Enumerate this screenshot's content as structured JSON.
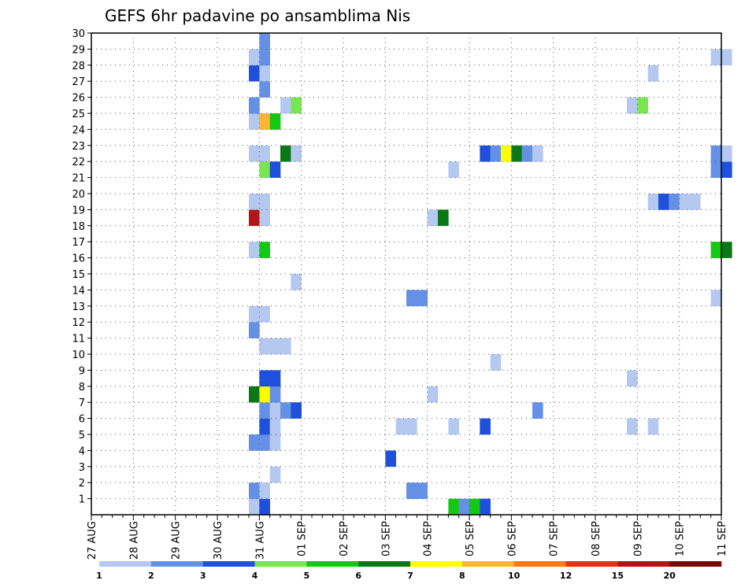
{
  "chart_data": {
    "type": "heatmap",
    "title": "GEFS 6hr padavine po ansamblima Nis",
    "y_labels": [
      "1",
      "2",
      "3",
      "4",
      "5",
      "6",
      "7",
      "8",
      "9",
      "10",
      "11",
      "12",
      "13",
      "14",
      "15",
      "16",
      "17",
      "18",
      "19",
      "20",
      "21",
      "22",
      "23",
      "24",
      "25",
      "26",
      "27",
      "28",
      "29",
      "30"
    ],
    "ylim": [
      0,
      30
    ],
    "x_labels": [
      "27 AUG",
      "28 AUG",
      "29 AUG",
      "30 AUG",
      "31 AUG",
      "01 SEP",
      "02 SEP",
      "03 SEP",
      "04 SEP",
      "05 SEP",
      "06 SEP",
      "07 SEP",
      "08 SEP",
      "09 SEP",
      "10 SEP",
      "11 SEP"
    ],
    "xlim_days": [
      0,
      15
    ],
    "time_step_hours": 6,
    "grid": true,
    "colorbar_labels": [
      "1",
      "2",
      "3",
      "4",
      "5",
      "6",
      "7",
      "8",
      "10",
      "12",
      "15",
      "20"
    ],
    "colorbar_colors": [
      "#b4c8f0",
      "#6491e6",
      "#1e50dc",
      "#78e650",
      "#14c814",
      "#0a7814",
      "#ffff00",
      "#ffb432",
      "#ff7814",
      "#e63214",
      "#b41414",
      "#780a0a"
    ],
    "cells": [
      {
        "member": 0,
        "step": 15,
        "level": 0
      },
      {
        "member": 0,
        "step": 16,
        "level": 2
      },
      {
        "member": 0,
        "step": 34,
        "level": 4
      },
      {
        "member": 0,
        "step": 35,
        "level": 1
      },
      {
        "member": 0,
        "step": 36,
        "level": 4
      },
      {
        "member": 0,
        "step": 37,
        "level": 2
      },
      {
        "member": 1,
        "step": 15,
        "level": 1
      },
      {
        "member": 1,
        "step": 16,
        "level": 0
      },
      {
        "member": 1,
        "step": 30,
        "level": 1
      },
      {
        "member": 1,
        "step": 31,
        "level": 1
      },
      {
        "member": 2,
        "step": 17,
        "level": 0
      },
      {
        "member": 3,
        "step": 28,
        "level": 2
      },
      {
        "member": 4,
        "step": 15,
        "level": 1
      },
      {
        "member": 4,
        "step": 16,
        "level": 1
      },
      {
        "member": 4,
        "step": 17,
        "level": 0
      },
      {
        "member": 5,
        "step": 16,
        "level": 2
      },
      {
        "member": 5,
        "step": 17,
        "level": 0
      },
      {
        "member": 5,
        "step": 29,
        "level": 0
      },
      {
        "member": 5,
        "step": 30,
        "level": 0
      },
      {
        "member": 5,
        "step": 34,
        "level": 0
      },
      {
        "member": 5,
        "step": 37,
        "level": 2
      },
      {
        "member": 5,
        "step": 51,
        "level": 0
      },
      {
        "member": 5,
        "step": 53,
        "level": 0
      },
      {
        "member": 6,
        "step": 16,
        "level": 1
      },
      {
        "member": 6,
        "step": 17,
        "level": 0
      },
      {
        "member": 6,
        "step": 18,
        "level": 1
      },
      {
        "member": 6,
        "step": 19,
        "level": 2
      },
      {
        "member": 6,
        "step": 42,
        "level": 1
      },
      {
        "member": 7,
        "step": 15,
        "level": 5
      },
      {
        "member": 7,
        "step": 16,
        "level": 6
      },
      {
        "member": 7,
        "step": 17,
        "level": 1
      },
      {
        "member": 7,
        "step": 32,
        "level": 0
      },
      {
        "member": 8,
        "step": 16,
        "level": 2
      },
      {
        "member": 8,
        "step": 17,
        "level": 2
      },
      {
        "member": 8,
        "step": 51,
        "level": 0
      },
      {
        "member": 9,
        "step": 38,
        "level": 0
      },
      {
        "member": 10,
        "step": 16,
        "level": 0
      },
      {
        "member": 10,
        "step": 17,
        "level": 0
      },
      {
        "member": 10,
        "step": 18,
        "level": 0
      },
      {
        "member": 11,
        "step": 15,
        "level": 1
      },
      {
        "member": 12,
        "step": 15,
        "level": 0
      },
      {
        "member": 12,
        "step": 16,
        "level": 0
      },
      {
        "member": 13,
        "step": 30,
        "level": 1
      },
      {
        "member": 13,
        "step": 31,
        "level": 1
      },
      {
        "member": 13,
        "step": 59,
        "level": 0
      },
      {
        "member": 14,
        "step": 19,
        "level": 0
      },
      {
        "member": 16,
        "step": 15,
        "level": 0
      },
      {
        "member": 16,
        "step": 16,
        "level": 4
      },
      {
        "member": 16,
        "step": 59,
        "level": 4
      },
      {
        "member": 16,
        "step": 60,
        "level": 5
      },
      {
        "member": 18,
        "step": 15,
        "level": 10
      },
      {
        "member": 18,
        "step": 16,
        "level": 0
      },
      {
        "member": 18,
        "step": 32,
        "level": 0
      },
      {
        "member": 18,
        "step": 33,
        "level": 5
      },
      {
        "member": 19,
        "step": 15,
        "level": 0
      },
      {
        "member": 19,
        "step": 16,
        "level": 0
      },
      {
        "member": 19,
        "step": 53,
        "level": 0
      },
      {
        "member": 19,
        "step": 54,
        "level": 2
      },
      {
        "member": 19,
        "step": 55,
        "level": 1
      },
      {
        "member": 19,
        "step": 56,
        "level": 0
      },
      {
        "member": 19,
        "step": 57,
        "level": 0
      },
      {
        "member": 21,
        "step": 16,
        "level": 3
      },
      {
        "member": 21,
        "step": 17,
        "level": 2
      },
      {
        "member": 21,
        "step": 34,
        "level": 0
      },
      {
        "member": 21,
        "step": 59,
        "level": 1
      },
      {
        "member": 21,
        "step": 60,
        "level": 2
      },
      {
        "member": 22,
        "step": 15,
        "level": 0
      },
      {
        "member": 22,
        "step": 16,
        "level": 0
      },
      {
        "member": 22,
        "step": 18,
        "level": 5
      },
      {
        "member": 22,
        "step": 19,
        "level": 0
      },
      {
        "member": 22,
        "step": 37,
        "level": 2
      },
      {
        "member": 22,
        "step": 38,
        "level": 1
      },
      {
        "member": 22,
        "step": 39,
        "level": 6
      },
      {
        "member": 22,
        "step": 40,
        "level": 5
      },
      {
        "member": 22,
        "step": 41,
        "level": 1
      },
      {
        "member": 22,
        "step": 42,
        "level": 0
      },
      {
        "member": 22,
        "step": 59,
        "level": 1
      },
      {
        "member": 22,
        "step": 60,
        "level": 0
      },
      {
        "member": 24,
        "step": 15,
        "level": 0
      },
      {
        "member": 24,
        "step": 16,
        "level": 7
      },
      {
        "member": 24,
        "step": 17,
        "level": 4
      },
      {
        "member": 25,
        "step": 15,
        "level": 1
      },
      {
        "member": 25,
        "step": 18,
        "level": 0
      },
      {
        "member": 25,
        "step": 19,
        "level": 3
      },
      {
        "member": 25,
        "step": 51,
        "level": 0
      },
      {
        "member": 25,
        "step": 52,
        "level": 3
      },
      {
        "member": 26,
        "step": 16,
        "level": 1
      },
      {
        "member": 27,
        "step": 15,
        "level": 2
      },
      {
        "member": 27,
        "step": 16,
        "level": 0
      },
      {
        "member": 27,
        "step": 53,
        "level": 0
      },
      {
        "member": 28,
        "step": 15,
        "level": 0
      },
      {
        "member": 28,
        "step": 16,
        "level": 1
      },
      {
        "member": 28,
        "step": 59,
        "level": 0
      },
      {
        "member": 28,
        "step": 60,
        "level": 0
      },
      {
        "member": 29,
        "step": 16,
        "level": 1
      }
    ]
  }
}
